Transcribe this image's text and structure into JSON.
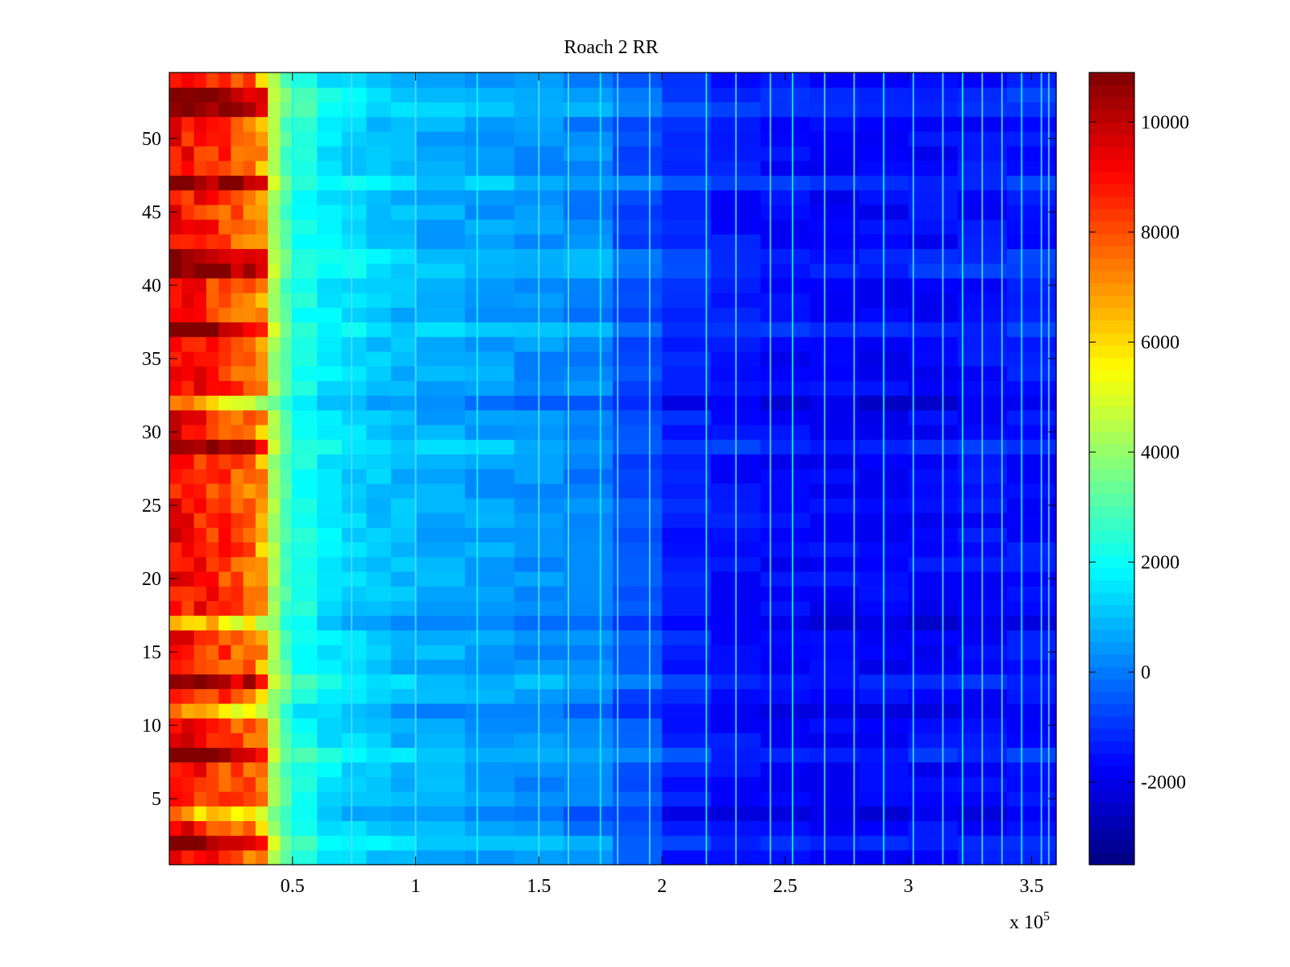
{
  "chart_data": {
    "type": "heatmap",
    "title": "Roach 2 RR",
    "xlabel": "",
    "ylabel": "",
    "x_multiplier_label": "x 10",
    "x_multiplier_exponent": "5",
    "xlim": [
      0,
      3.6
    ],
    "ylim": [
      0.5,
      54.5
    ],
    "x_ticks": [
      {
        "value": 0.5,
        "label": "0.5"
      },
      {
        "value": 1,
        "label": "1"
      },
      {
        "value": 1.5,
        "label": "1.5"
      },
      {
        "value": 2,
        "label": "2"
      },
      {
        "value": 2.5,
        "label": "2.5"
      },
      {
        "value": 3,
        "label": "3"
      },
      {
        "value": 3.5,
        "label": "3.5"
      }
    ],
    "y_ticks": [
      {
        "value": 5,
        "label": "5"
      },
      {
        "value": 10,
        "label": "10"
      },
      {
        "value": 15,
        "label": "15"
      },
      {
        "value": 20,
        "label": "20"
      },
      {
        "value": 25,
        "label": "25"
      },
      {
        "value": 30,
        "label": "30"
      },
      {
        "value": 35,
        "label": "35"
      },
      {
        "value": 40,
        "label": "40"
      },
      {
        "value": 45,
        "label": "45"
      },
      {
        "value": 50,
        "label": "50"
      }
    ],
    "colorbar": {
      "colormap": "jet",
      "clim": [
        -3500,
        10900
      ],
      "ticks": [
        {
          "value": -2000,
          "label": "-2000"
        },
        {
          "value": 0,
          "label": "0"
        },
        {
          "value": 2000,
          "label": "2000"
        },
        {
          "value": 4000,
          "label": "4000"
        },
        {
          "value": 6000,
          "label": "6000"
        },
        {
          "value": 8000,
          "label": "8000"
        },
        {
          "value": 10000,
          "label": "10000"
        }
      ]
    },
    "rows": 54,
    "x_bins": [
      0,
      0.05,
      0.1,
      0.15,
      0.2,
      0.25,
      0.3,
      0.35,
      0.4,
      0.45,
      0.5,
      0.6,
      0.7,
      0.8,
      0.9,
      1.0,
      1.2,
      1.4,
      1.6,
      1.8,
      2.0,
      2.2,
      2.4,
      2.6,
      2.8,
      3.0,
      3.2,
      3.4,
      3.6
    ],
    "column_profile": [
      9200,
      9000,
      8800,
      8500,
      8200,
      7900,
      7600,
      6800,
      4200,
      3000,
      2200,
      1600,
      1300,
      1100,
      900,
      750,
      550,
      350,
      150,
      -600,
      -1300,
      -1500,
      -1650,
      -1700,
      -1700,
      -1650,
      -1550,
      -1500
    ],
    "hot_rows": [
      2,
      8,
      13,
      29,
      37,
      41,
      42,
      47,
      52,
      53
    ],
    "cool_rows": [
      4,
      11,
      17,
      32
    ],
    "bright_columns_x": [
      0.5,
      0.74,
      1.0,
      1.25,
      1.5,
      1.62,
      1.75,
      1.82,
      1.95,
      2.18,
      2.3,
      2.44,
      2.53,
      2.66,
      2.78,
      2.9,
      3.02,
      3.14,
      3.22,
      3.3,
      3.38,
      3.46,
      3.54,
      3.57
    ]
  }
}
